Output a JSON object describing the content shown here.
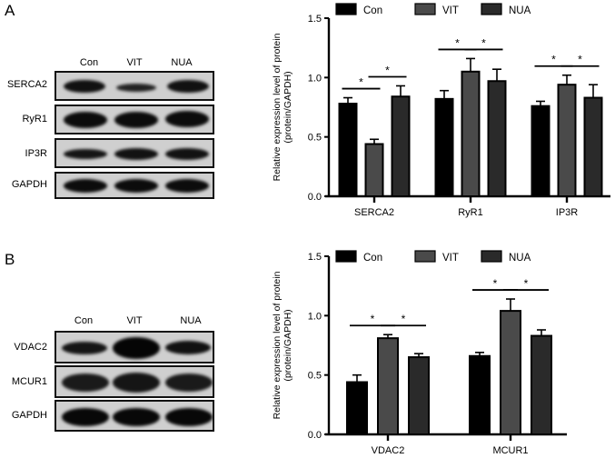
{
  "panels": {
    "A": {
      "letter": "A",
      "lanes": [
        "Con",
        "VIT",
        "NUA"
      ],
      "rows": [
        "SERCA2",
        "RyR1",
        "IP3R",
        "GAPDH"
      ]
    },
    "B": {
      "letter": "B",
      "lanes": [
        "Con",
        "VIT",
        "NUA"
      ],
      "rows": [
        "VDAC2",
        "MCUR1",
        "GAPDH"
      ]
    }
  },
  "legend": [
    {
      "label": "Con",
      "color": "#000000"
    },
    {
      "label": "VIT",
      "color": "#4a4a4a"
    },
    {
      "label": "NUA",
      "color": "#2a2a2a"
    }
  ],
  "chart_data": [
    {
      "type": "bar",
      "panel": "A",
      "title": "",
      "xlabel": "",
      "ylabel": "Relative expression level of protein (protein/GAPDH)",
      "ylabel_line1": "Relative expression level of protein",
      "ylabel_line2": "(protein/GAPDH)",
      "ylim": [
        0,
        1.5
      ],
      "yticks": [
        "0.0",
        "0.5",
        "1.0",
        "1.5"
      ],
      "categories": [
        "SERCA2",
        "RyR1",
        "IP3R"
      ],
      "series": [
        {
          "name": "Con",
          "values": [
            0.78,
            0.82,
            0.76
          ],
          "errors": [
            0.05,
            0.07,
            0.04
          ]
        },
        {
          "name": "VIT",
          "values": [
            0.44,
            1.05,
            0.94
          ],
          "errors": [
            0.04,
            0.11,
            0.08
          ]
        },
        {
          "name": "NUA",
          "values": [
            0.84,
            0.97,
            0.83
          ],
          "errors": [
            0.09,
            0.1,
            0.11
          ]
        }
      ],
      "significance": [
        {
          "category": "SERCA2",
          "pair": [
            "Con",
            "VIT"
          ],
          "mark": "*"
        },
        {
          "category": "SERCA2",
          "pair": [
            "VIT",
            "NUA"
          ],
          "mark": "*"
        },
        {
          "category": "RyR1",
          "pair": [
            "Con",
            "VIT"
          ],
          "mark": "*"
        },
        {
          "category": "RyR1",
          "pair": [
            "VIT",
            "NUA"
          ],
          "mark": "*"
        },
        {
          "category": "IP3R",
          "pair": [
            "Con",
            "VIT"
          ],
          "mark": "*"
        },
        {
          "category": "IP3R",
          "pair": [
            "VIT",
            "NUA"
          ],
          "mark": "*"
        }
      ],
      "grid": false,
      "legend_position": "top"
    },
    {
      "type": "bar",
      "panel": "B",
      "title": "",
      "xlabel": "",
      "ylabel": "Relative expression level of protein (protein/GAPDH)",
      "ylabel_line1": "Relative expression level of protein",
      "ylabel_line2": "(protein/GAPDH)",
      "ylim": [
        0,
        1.5
      ],
      "yticks": [
        "0.0",
        "0.5",
        "1.0",
        "1.5"
      ],
      "categories": [
        "VDAC2",
        "MCUR1"
      ],
      "series": [
        {
          "name": "Con",
          "values": [
            0.44,
            0.66
          ],
          "errors": [
            0.06,
            0.03
          ]
        },
        {
          "name": "VIT",
          "values": [
            0.81,
            1.04
          ],
          "errors": [
            0.03,
            0.1
          ]
        },
        {
          "name": "NUA",
          "values": [
            0.65,
            0.83
          ],
          "errors": [
            0.03,
            0.05
          ]
        }
      ],
      "significance": [
        {
          "category": "VDAC2",
          "pair": [
            "Con",
            "VIT"
          ],
          "mark": "*"
        },
        {
          "category": "VDAC2",
          "pair": [
            "VIT",
            "NUA"
          ],
          "mark": "*"
        },
        {
          "category": "MCUR1",
          "pair": [
            "Con",
            "VIT"
          ],
          "mark": "*"
        },
        {
          "category": "MCUR1",
          "pair": [
            "VIT",
            "NUA"
          ],
          "mark": "*"
        }
      ],
      "grid": false,
      "legend_position": "top"
    }
  ]
}
